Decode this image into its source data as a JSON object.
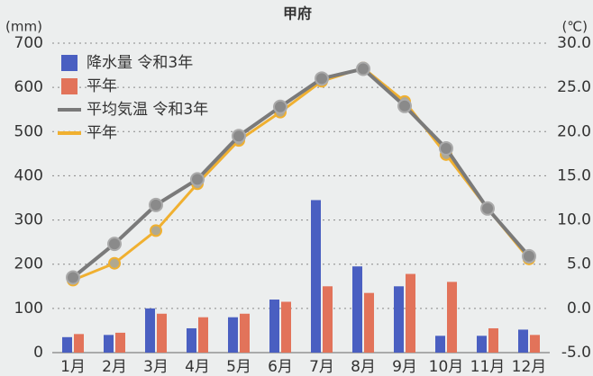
{
  "chart_data": {
    "type": "bar",
    "title": "甲府",
    "y_label": "(mm)",
    "y2_label": "(℃)",
    "categories": [
      "1月",
      "2月",
      "3月",
      "4月",
      "5月",
      "6月",
      "7月",
      "8月",
      "9月",
      "10月",
      "11月",
      "12月"
    ],
    "series": [
      {
        "name": "降水量 令和3年",
        "type": "bar",
        "color": "#4a5fc1",
        "values": [
          35,
          40,
          100,
          55,
          80,
          120,
          345,
          195,
          150,
          38,
          38,
          52
        ]
      },
      {
        "name": "平年",
        "type": "bar",
        "color": "#e2735a",
        "values": [
          42,
          45,
          88,
          80,
          88,
          115,
          150,
          135,
          178,
          160,
          55,
          40
        ]
      },
      {
        "name": "平均気温 令和3年",
        "type": "line",
        "axis": "y2",
        "color": "#7a7a7a",
        "values": [
          3.5,
          7.3,
          11.7,
          14.6,
          19.5,
          22.8,
          26.0,
          27.1,
          22.9,
          18.1,
          11.3,
          5.9
        ]
      },
      {
        "name": "平年",
        "type": "line",
        "axis": "y2",
        "color": "#f0b030",
        "values": [
          3.2,
          5.1,
          8.8,
          14.1,
          19.0,
          22.2,
          25.7,
          27.2,
          23.4,
          17.4,
          11.3,
          5.6
        ]
      }
    ],
    "ylim": [
      0,
      700
    ],
    "yticks": [
      0,
      100,
      200,
      300,
      400,
      500,
      600,
      700
    ],
    "y2lim": [
      -5,
      30
    ],
    "y2ticks": [
      {
        "value": -5,
        "label": "-5.0"
      },
      {
        "value": 0,
        "label": "0.0"
      },
      {
        "value": 5,
        "label": "5.0"
      },
      {
        "value": 10,
        "label": "10.0"
      },
      {
        "value": 15,
        "label": "15.0"
      },
      {
        "value": 20,
        "label": "20.0"
      },
      {
        "value": 25,
        "label": "25.0"
      },
      {
        "value": 30,
        "label": "30.0"
      }
    ],
    "grid": true
  }
}
